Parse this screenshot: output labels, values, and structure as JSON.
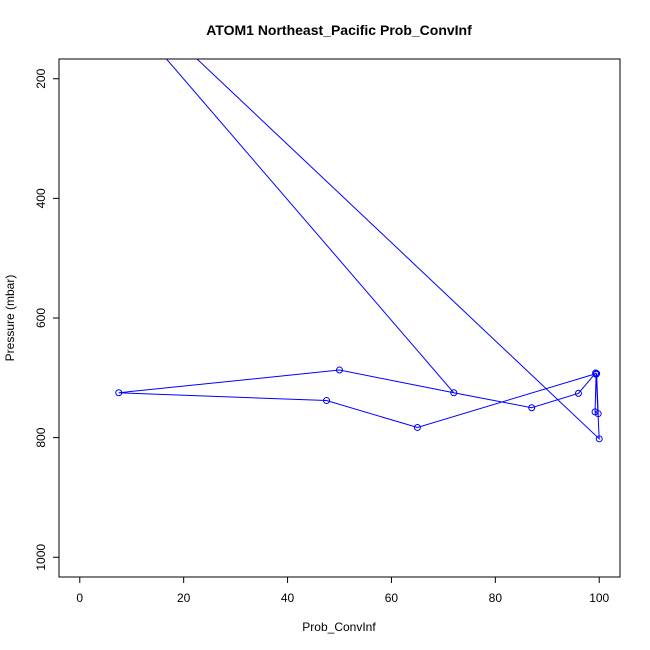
{
  "chart_data": {
    "type": "line",
    "title": "ATOM1 Northeast_Pacific Prob_ConvInf",
    "xlabel": "Prob_ConvInf",
    "ylabel": "Pressure (mbar)",
    "xlim": [
      -4,
      104
    ],
    "ylim": [
      167,
      1033
    ],
    "y_reversed": true,
    "x_ticks": [
      0,
      20,
      40,
      60,
      80,
      100
    ],
    "y_ticks": [
      200,
      400,
      600,
      800,
      1000
    ],
    "grid": false,
    "line_color": "#0000ff",
    "series": [
      {
        "x": [
          15,
          72,
          87,
          96,
          99.3,
          99.5,
          99.8,
          99.2,
          99.4,
          100,
          20.5
        ],
        "y": [
          150,
          725,
          750,
          726,
          692,
          693,
          760,
          757,
          694,
          802,
          150
        ],
        "markers": [
          false,
          true,
          true,
          true,
          true,
          true,
          true,
          true,
          true,
          true,
          false
        ]
      },
      {
        "x": [
          99,
          65,
          47.5,
          7.5,
          50,
          72
        ],
        "y": [
          694,
          783,
          738,
          725,
          687,
          725
        ],
        "markers": [
          false,
          true,
          true,
          true,
          true,
          false
        ]
      }
    ]
  }
}
